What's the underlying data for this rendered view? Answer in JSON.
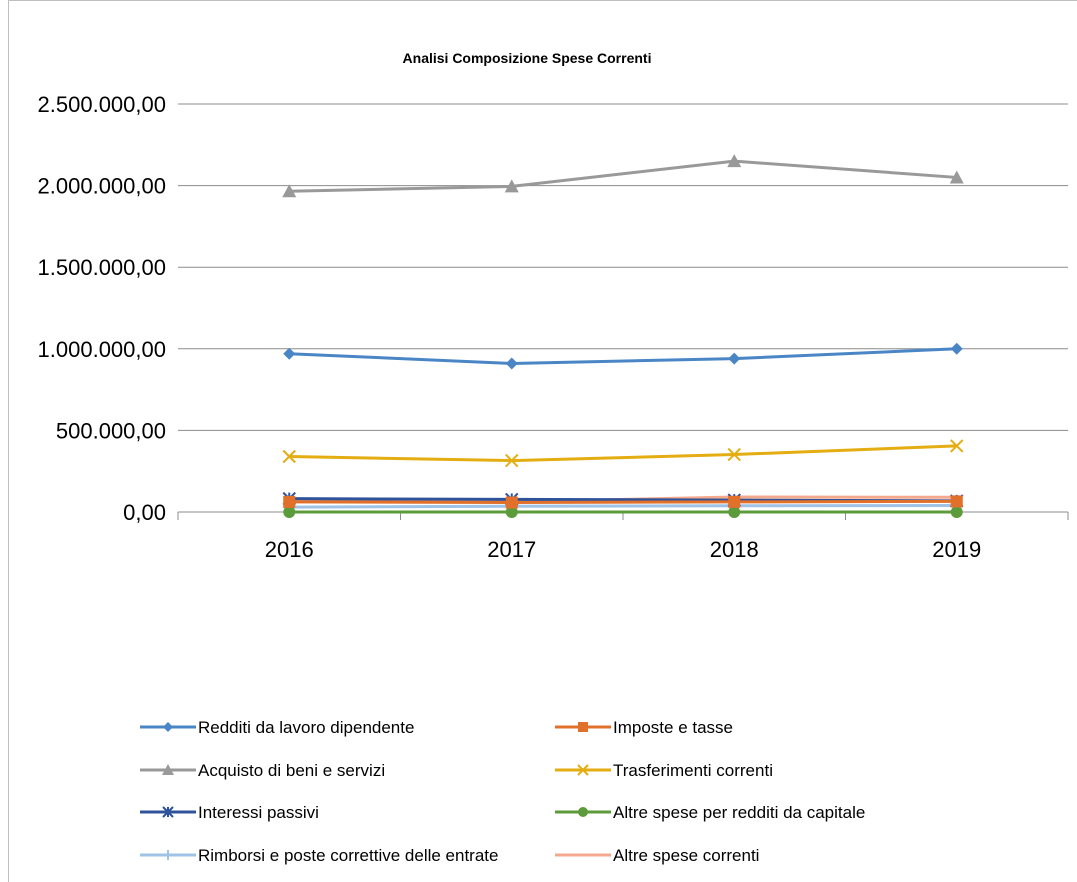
{
  "chart_data": {
    "type": "line",
    "title": "Analisi Composizione Spese Correnti",
    "xlabel": "",
    "ylabel": "",
    "categories": [
      "2016",
      "2017",
      "2018",
      "2019"
    ],
    "ylim": [
      0,
      2500000
    ],
    "yticks": [
      {
        "value": 0,
        "label": "0,00"
      },
      {
        "value": 500000,
        "label": "500.000,00"
      },
      {
        "value": 1000000,
        "label": "1.000.000,00"
      },
      {
        "value": 1500000,
        "label": "1.500.000,00"
      },
      {
        "value": 2000000,
        "label": "2.000.000,00"
      },
      {
        "value": 2500000,
        "label": "2.500.000,00"
      }
    ],
    "grid": true,
    "legend_position": "bottom",
    "series": [
      {
        "name": "Redditi da lavoro dipendente",
        "color": "#4a86c5",
        "marker": "diamond",
        "values": [
          970000,
          910000,
          940000,
          1000000
        ]
      },
      {
        "name": "Imposte e tasse",
        "color": "#e0702a",
        "marker": "square",
        "values": [
          62000,
          58000,
          62000,
          65000
        ]
      },
      {
        "name": "Acquisto di beni e servizi",
        "color": "#999999",
        "marker": "triangle",
        "values": [
          1965000,
          1995000,
          2150000,
          2050000
        ]
      },
      {
        "name": "Trasferimenti correnti",
        "color": "#e4ad12",
        "marker": "x",
        "values": [
          340000,
          315000,
          352000,
          405000
        ]
      },
      {
        "name": "Interessi passivi",
        "color": "#2f539b",
        "marker": "star",
        "values": [
          82000,
          77000,
          73000,
          68000
        ]
      },
      {
        "name": "Altre spese per redditi da capitale",
        "color": "#5b9b3a",
        "marker": "circle",
        "values": [
          0,
          0,
          0,
          0
        ]
      },
      {
        "name": "Rimborsi e poste correttive delle entrate",
        "color": "#9fc3e7",
        "marker": "plus",
        "values": [
          30000,
          35000,
          38000,
          40000
        ]
      },
      {
        "name": "Altre spese correnti",
        "color": "#f4a98d",
        "marker": "none",
        "values": [
          65000,
          62000,
          92000,
          90000
        ]
      }
    ]
  }
}
